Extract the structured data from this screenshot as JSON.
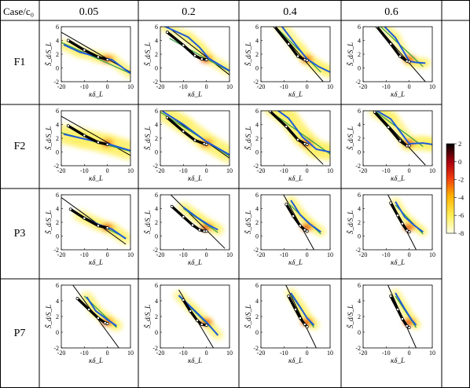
{
  "table": {
    "corner_label": "Case/c₀",
    "columns": [
      "0.05",
      "0.2",
      "0.4",
      "0.6"
    ],
    "rows": [
      "F1",
      "F2",
      "P3",
      "P7"
    ]
  },
  "axes": {
    "xlabel": "κδ_L",
    "ylabel": "S̃_d/S_L",
    "xticks": [
      "-20",
      "-10",
      "0",
      "10"
    ],
    "yticks": [
      "6",
      "4",
      "2",
      "0",
      "-2"
    ],
    "xlim": [
      -20,
      10
    ],
    "ylim": [
      -2,
      6
    ]
  },
  "colorbar": {
    "ticks": [
      "2",
      "0",
      "-2",
      "-4",
      "-6",
      "-8"
    ],
    "range": [
      -8,
      2
    ]
  },
  "chart_data": {
    "type": "scatter",
    "colors": {
      "black_curve": "#000000",
      "blue_curve": "#1f5bd8",
      "green_line": "#3aa34a",
      "line": "#000000"
    },
    "panels": [
      {
        "row": "F1",
        "col": "0.05",
        "spread": 0.6,
        "line": [
          [
            -20,
            5.2
          ],
          [
            10,
            -0.6
          ]
        ],
        "black": [
          [
            -17,
            4.0
          ],
          [
            -10,
            2.6
          ],
          [
            -4,
            1.6
          ],
          [
            0,
            1.2
          ]
        ],
        "blue": [
          [
            -19,
            3.4
          ],
          [
            -12,
            2.3
          ],
          [
            -4,
            1.6
          ],
          [
            2,
            1.2
          ],
          [
            10,
            -0.8
          ]
        ],
        "green": [
          [
            -20,
            3.7
          ],
          [
            10,
            -0.8
          ]
        ]
      },
      {
        "row": "F1",
        "col": "0.2",
        "spread": 0.6,
        "line": [
          [
            -20,
            6.8
          ],
          [
            10,
            -1.0
          ]
        ],
        "black": [
          [
            -17,
            5.2
          ],
          [
            -10,
            3.3
          ],
          [
            -5,
            1.8
          ],
          [
            -2,
            1.3
          ],
          [
            0,
            1.2
          ]
        ],
        "blue": [
          [
            -19,
            6.2
          ],
          [
            -8,
            4.5
          ],
          [
            -3,
            3.0
          ],
          [
            1,
            1.4
          ],
          [
            10,
            -0.4
          ]
        ],
        "green": [
          [
            -16,
            4.3
          ],
          [
            10,
            -0.5
          ]
        ]
      },
      {
        "row": "F1",
        "col": "0.4",
        "spread": 0.7,
        "line": [
          [
            -15,
            6.5
          ],
          [
            7,
            -2.0
          ]
        ],
        "black": [
          [
            -14,
            6.0
          ],
          [
            -8,
            3.5
          ],
          [
            -4,
            1.7
          ],
          [
            -1,
            1.2
          ],
          [
            0,
            1.1
          ]
        ],
        "blue": [
          [
            -12,
            6.5
          ],
          [
            -4,
            3.0
          ],
          [
            0,
            1.3
          ],
          [
            5,
            0.2
          ],
          [
            10,
            -0.6
          ]
        ],
        "green": [
          [
            -13,
            5.8
          ],
          [
            6,
            -0.6
          ]
        ]
      },
      {
        "row": "F1",
        "col": "0.6",
        "spread": 0.5,
        "line": [
          [
            -15,
            6.5
          ],
          [
            7,
            -2.0
          ]
        ],
        "black": [
          [
            -14,
            6.0
          ],
          [
            -8,
            3.5
          ],
          [
            -4,
            1.7
          ],
          [
            -1,
            1.0
          ],
          [
            0,
            0.9
          ]
        ],
        "blue": [
          [
            -13,
            6.8
          ],
          [
            -6,
            4.4
          ],
          [
            0,
            1.0
          ],
          [
            3,
            0.8
          ],
          [
            7,
            0.7
          ]
        ],
        "green": [
          [
            -13,
            6.2
          ],
          [
            6,
            0.2
          ]
        ]
      },
      {
        "row": "F2",
        "col": "0.05",
        "spread": 1.4,
        "line": [
          [
            -20,
            5.2
          ],
          [
            10,
            -0.5
          ]
        ],
        "black": [
          [
            -17,
            3.8
          ],
          [
            -10,
            2.4
          ],
          [
            -4,
            1.4
          ],
          [
            0,
            1.1
          ]
        ],
        "blue": [
          [
            -19,
            2.6
          ],
          [
            -10,
            1.9
          ],
          [
            0,
            1.2
          ],
          [
            10,
            0.2
          ]
        ],
        "green": [
          [
            -20,
            2.8
          ],
          [
            10,
            0.1
          ]
        ]
      },
      {
        "row": "F2",
        "col": "0.2",
        "spread": 1.2,
        "line": [
          [
            -20,
            6.2
          ],
          [
            10,
            -0.9
          ]
        ],
        "black": [
          [
            -17,
            5.0
          ],
          [
            -10,
            3.0
          ],
          [
            -5,
            1.7
          ],
          [
            -1,
            1.2
          ],
          [
            0,
            1.1
          ]
        ],
        "blue": [
          [
            -19,
            5.9
          ],
          [
            -10,
            4.0
          ],
          [
            0,
            1.5
          ],
          [
            10,
            -0.4
          ]
        ],
        "green": [
          [
            -20,
            5.8
          ],
          [
            10,
            -0.6
          ]
        ]
      },
      {
        "row": "F2",
        "col": "0.4",
        "spread": 1.2,
        "line": [
          [
            -18,
            6.5
          ],
          [
            7,
            -1.8
          ]
        ],
        "black": [
          [
            -16,
            5.9
          ],
          [
            -9,
            3.7
          ],
          [
            -4,
            1.8
          ],
          [
            -1,
            1.2
          ],
          [
            0,
            1.1
          ]
        ],
        "blue": [
          [
            -15,
            6.6
          ],
          [
            -8,
            4.9
          ],
          [
            -2,
            2.2
          ],
          [
            4,
            0.4
          ],
          [
            10,
            0.0
          ]
        ],
        "green": [
          [
            -16,
            5.9
          ],
          [
            10,
            -0.3
          ]
        ]
      },
      {
        "row": "F2",
        "col": "0.6",
        "spread": 0.9,
        "line": [
          [
            -16,
            6.4
          ],
          [
            7,
            -1.9
          ]
        ],
        "black": [
          [
            -15,
            5.8
          ],
          [
            -9,
            3.6
          ],
          [
            -4,
            1.6
          ],
          [
            -1,
            0.9
          ],
          [
            0,
            0.9
          ]
        ],
        "blue": [
          [
            -14,
            6.0
          ],
          [
            -8,
            4.8
          ],
          [
            0,
            1.2
          ],
          [
            6,
            1.3
          ],
          [
            10,
            1.1
          ]
        ],
        "green": [
          [
            -15,
            6.0
          ],
          [
            6,
            0.8
          ]
        ]
      },
      {
        "row": "P3",
        "col": "0.05",
        "spread": 0.7,
        "line": [
          [
            -20,
            5.6
          ],
          [
            8,
            -1.2
          ]
        ],
        "black": [
          [
            -16,
            3.9
          ],
          [
            -10,
            2.6
          ],
          [
            -4,
            1.5
          ],
          [
            0,
            1.2
          ]
        ],
        "blue": [
          [
            -12,
            3.0
          ],
          [
            -4,
            1.7
          ],
          [
            2,
            1.0
          ],
          [
            8,
            -0.4
          ]
        ],
        "green": [
          [
            -15,
            3.6
          ],
          [
            8,
            -0.3
          ]
        ]
      },
      {
        "row": "P3",
        "col": "0.2",
        "spread": 0.6,
        "line": [
          [
            -17,
            6.5
          ],
          [
            8,
            -1.8
          ]
        ],
        "black": [
          [
            -15,
            4.3
          ],
          [
            -10,
            2.8
          ],
          [
            -6,
            1.6
          ],
          [
            -3,
            0.9
          ],
          [
            -1,
            0.7
          ],
          [
            0,
            0.7
          ]
        ],
        "blue": [
          [
            -10,
            4.2
          ],
          [
            -4,
            2.7
          ],
          [
            1,
            1.6
          ],
          [
            5,
            0.9
          ]
        ],
        "green": [
          [
            -10,
            4.0
          ],
          [
            5,
            0.5
          ]
        ]
      },
      {
        "row": "P3",
        "col": "0.4",
        "spread": 0.5,
        "line": [
          [
            -11,
            6.5
          ],
          [
            3,
            -2.0
          ]
        ],
        "black": [
          [
            -9,
            4.6
          ],
          [
            -6,
            2.9
          ],
          [
            -3,
            1.5
          ],
          [
            -1,
            0.9
          ],
          [
            0,
            0.7
          ]
        ],
        "blue": [
          [
            -7,
            5.2
          ],
          [
            -3,
            3.1
          ],
          [
            1,
            1.8
          ],
          [
            6,
            0.6
          ]
        ],
        "green": [
          [
            -8,
            4.7
          ],
          [
            6,
            0.3
          ]
        ]
      },
      {
        "row": "P3",
        "col": "0.6",
        "spread": 0.4,
        "line": [
          [
            -10,
            6.5
          ],
          [
            3,
            -2.0
          ]
        ],
        "black": [
          [
            -8,
            4.8
          ],
          [
            -5,
            3.0
          ],
          [
            -3,
            1.8
          ],
          [
            -1,
            0.8
          ],
          [
            0,
            0.6
          ]
        ],
        "blue": [
          [
            -6,
            5.0
          ],
          [
            -2,
            2.8
          ],
          [
            2,
            1.6
          ],
          [
            6,
            0.6
          ]
        ],
        "green": [
          [
            -6,
            4.5
          ],
          [
            6,
            0.3
          ]
        ]
      },
      {
        "row": "P7",
        "col": "0.05",
        "spread": 0.6,
        "line": [
          [
            -15,
            6.0
          ],
          [
            5,
            -2.0
          ]
        ],
        "black": [
          [
            -13,
            4.3
          ],
          [
            -8,
            2.9
          ],
          [
            -4,
            1.8
          ],
          [
            -1,
            1.2
          ],
          [
            0,
            1.1
          ]
        ],
        "blue": [
          [
            -9,
            4.5
          ],
          [
            -5,
            2.7
          ],
          [
            0,
            1.6
          ],
          [
            4,
            0.8
          ]
        ],
        "green": [
          [
            -10,
            4.6
          ],
          [
            4,
            0.6
          ]
        ]
      },
      {
        "row": "P7",
        "col": "0.2",
        "spread": 0.5,
        "line": [
          [
            -12,
            5.4
          ],
          [
            3,
            -2.0
          ]
        ],
        "black": [
          [
            -10,
            4.1
          ],
          [
            -7,
            2.7
          ],
          [
            -4,
            1.5
          ],
          [
            -2,
            1.0
          ],
          [
            0,
            0.9
          ]
        ],
        "blue": [
          [
            -12,
            4.7
          ],
          [
            -6,
            3.0
          ],
          [
            0,
            1.3
          ],
          [
            5,
            -0.4
          ]
        ],
        "green": [
          [
            -12,
            4.6
          ],
          [
            5,
            -0.3
          ]
        ]
      },
      {
        "row": "P7",
        "col": "0.4",
        "spread": 0.5,
        "line": [
          [
            -10,
            6.5
          ],
          [
            4,
            -2.0
          ]
        ],
        "black": [
          [
            -8,
            4.6
          ],
          [
            -5,
            2.9
          ],
          [
            -3,
            1.8
          ],
          [
            -1,
            1.0
          ],
          [
            0,
            0.7
          ]
        ],
        "blue": [
          [
            -7,
            5.0
          ],
          [
            -3,
            3.2
          ],
          [
            0,
            1.8
          ],
          [
            3,
            0.9
          ]
        ],
        "green": [
          [
            -7,
            4.8
          ],
          [
            3,
            0.6
          ]
        ]
      },
      {
        "row": "P7",
        "col": "0.6",
        "spread": 0.4,
        "line": [
          [
            -10,
            6.5
          ],
          [
            3,
            -2.0
          ]
        ],
        "black": [
          [
            -8,
            4.6
          ],
          [
            -5,
            2.9
          ],
          [
            -3,
            1.7
          ],
          [
            -1,
            0.8
          ],
          [
            0,
            0.6
          ]
        ],
        "blue": [
          [
            -6,
            5.0
          ],
          [
            -2,
            3.0
          ],
          [
            1,
            1.6
          ],
          [
            3,
            0.9
          ]
        ],
        "green": [
          [
            -6,
            4.6
          ],
          [
            3,
            0.6
          ]
        ]
      }
    ]
  }
}
